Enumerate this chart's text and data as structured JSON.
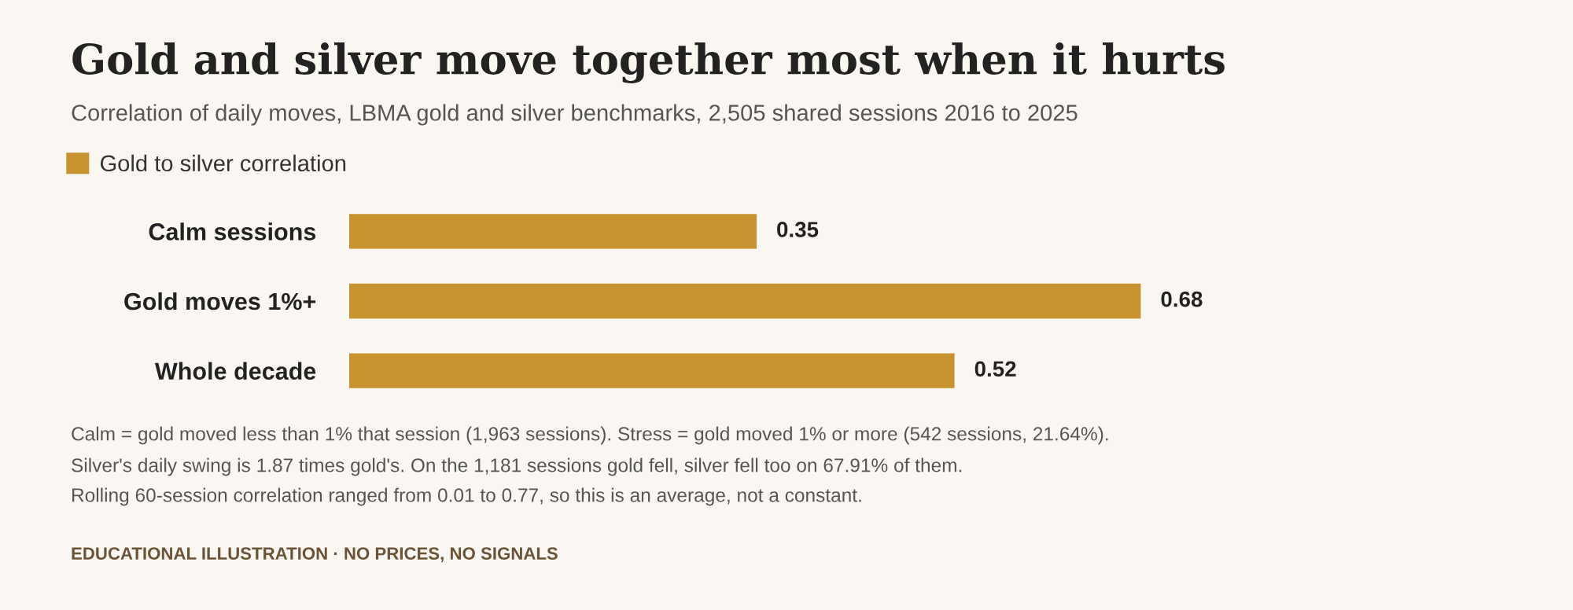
{
  "chart_data": {
    "type": "bar",
    "orientation": "horizontal",
    "title": "Gold and silver move together most when it hurts",
    "subtitle": "Correlation of daily moves, LBMA gold and silver benchmarks, 2,505 shared sessions 2016 to 2025",
    "categories": [
      "Calm sessions",
      "Gold moves 1%+",
      "Whole decade"
    ],
    "series": [
      {
        "name": "Gold to silver correlation",
        "color": "#c8932f",
        "values": [
          0.35,
          0.68,
          0.52
        ]
      }
    ],
    "data_labels": true,
    "legend": "top left",
    "grid": false,
    "annotations": [
      "Calm = gold moved less than 1% that session (1,963 sessions). Stress = gold moved 1% or more (542 sessions, 21.64%).",
      "Silver's daily swing is 1.87 times gold's. On the 1,181 sessions gold fell, silver fell too on 67.91% of them.",
      "Rolling 60-session correlation ranged from 0.01 to 0.77, so this is an average, not a constant.",
      "EDUCATIONAL ILLUSTRATION · NO PRICES, NO SIGNALS"
    ]
  }
}
